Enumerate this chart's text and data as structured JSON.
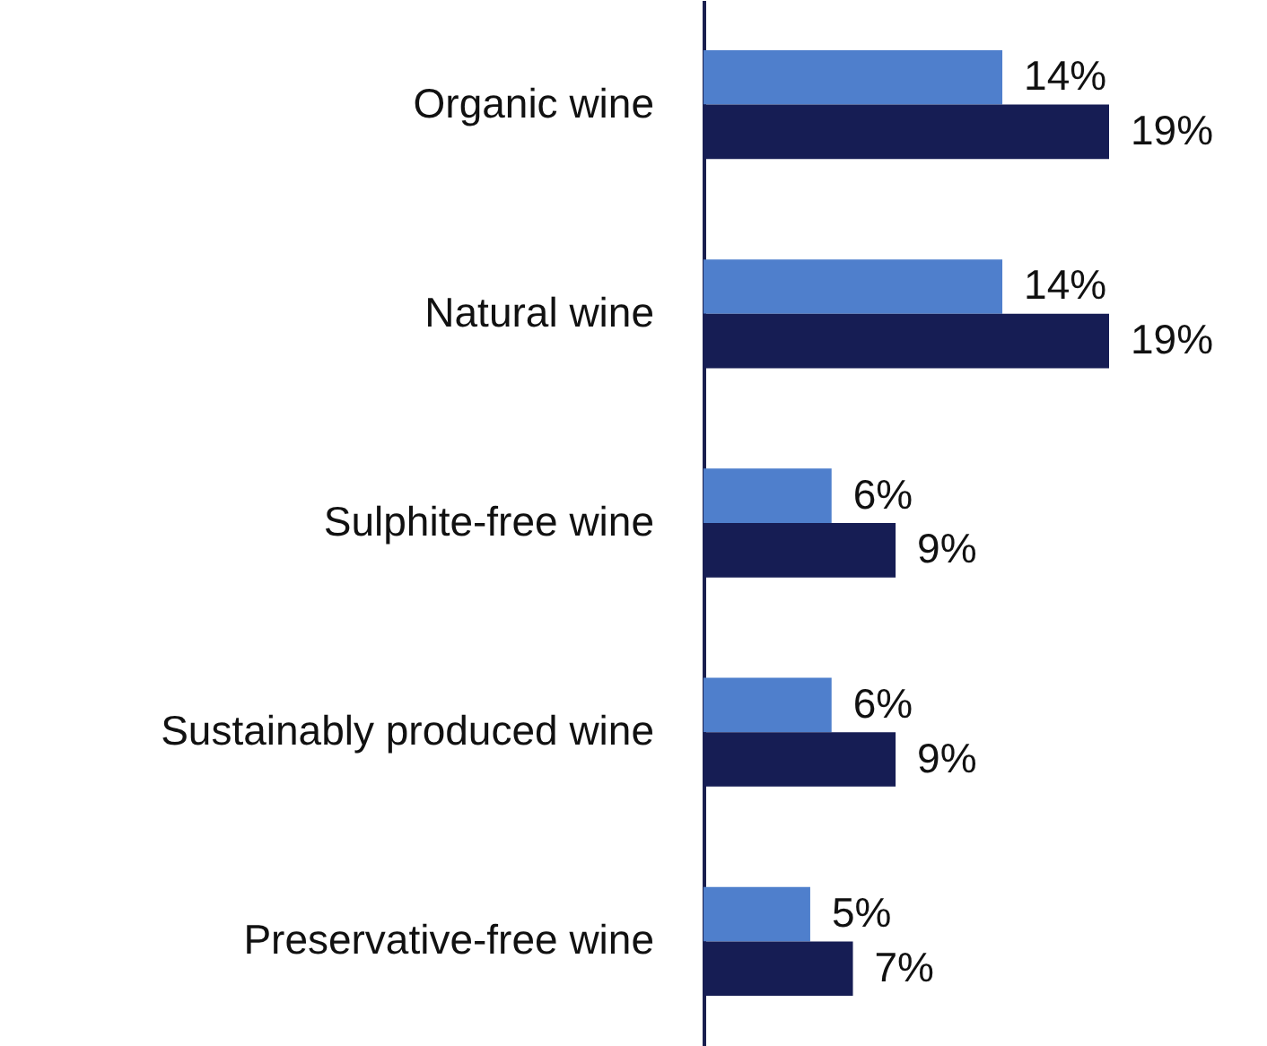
{
  "chart_data": {
    "type": "bar",
    "orientation": "horizontal",
    "categories": [
      "Organic wine",
      "Natural wine",
      "Sulphite-free wine",
      "Sustainably produced wine",
      "Preservative-free wine"
    ],
    "series": [
      {
        "color": "#4f7fcc",
        "values": [
          14,
          14,
          6,
          6,
          5
        ],
        "value_labels": [
          "14%",
          "14%",
          "6%",
          "6%",
          "5%"
        ]
      },
      {
        "color": "#161d54",
        "values": [
          19,
          19,
          9,
          9,
          7
        ],
        "value_labels": [
          "19%",
          "19%",
          "9%",
          "9%",
          "7%"
        ]
      }
    ],
    "grid": false
  }
}
